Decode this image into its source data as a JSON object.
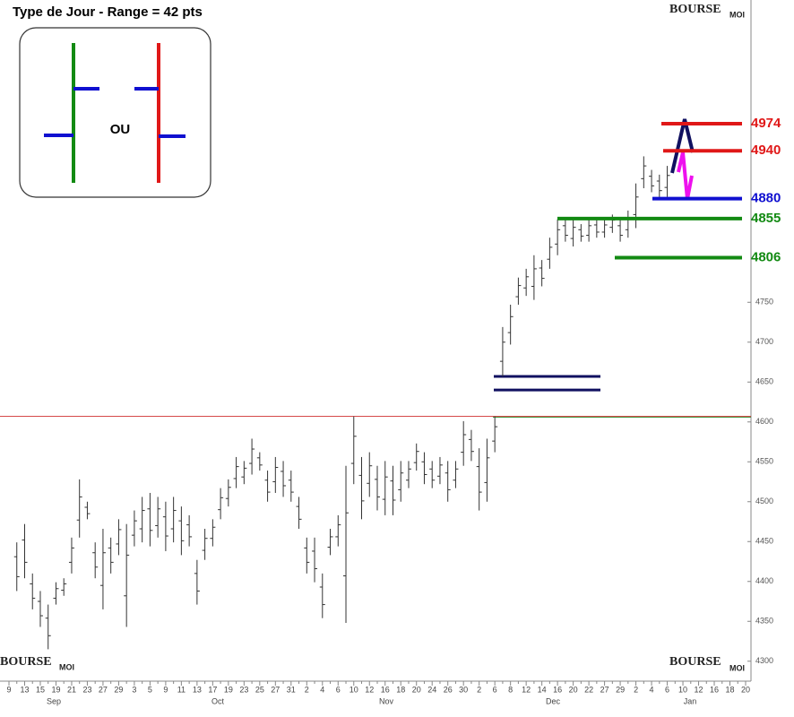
{
  "chart_data": {
    "type": "ohlc",
    "title": "Type de Jour - Range = 42 pts",
    "inset_text": "OU",
    "logo": "BOURSE",
    "logo_small": "MOI",
    "months": [
      "Sep",
      "Oct",
      "Nov",
      "Dec",
      "Jan"
    ],
    "categories": [
      "9",
      null,
      "13",
      null,
      "15",
      null,
      "19",
      null,
      "21",
      null,
      "23",
      null,
      "27",
      null,
      "29",
      null,
      "3",
      null,
      "5",
      null,
      "9",
      null,
      "11",
      null,
      "13",
      null,
      "17",
      null,
      "19",
      null,
      "23",
      null,
      "25",
      null,
      "27",
      null,
      "31",
      null,
      "2",
      null,
      "4",
      null,
      "6",
      null,
      "10",
      null,
      "12",
      null,
      "16",
      null,
      "18",
      null,
      "20",
      null,
      "24",
      null,
      "26",
      null,
      "30",
      null,
      "2",
      null,
      "6",
      null,
      "8",
      null,
      "12",
      null,
      "14",
      null,
      "16",
      null,
      "20",
      null,
      "22",
      null,
      "27",
      null,
      "29",
      null,
      "2",
      null,
      "4",
      null,
      "6",
      null,
      "10",
      null,
      "12",
      null,
      "16",
      null,
      "18",
      null,
      "20"
    ],
    "open": [
      null,
      4431,
      4452,
      4397,
      4375,
      4354,
      4379,
      4389,
      4424,
      4477,
      4493,
      4436,
      4395,
      4442,
      4447,
      4382,
      4458,
      4466,
      4491,
      4470,
      4481,
      4466,
      4476,
      4471,
      4410,
      4439,
      4454,
      4490,
      4504,
      4529,
      4531,
      4548,
      4555,
      4527,
      4525,
      4538,
      4527,
      4494,
      4442,
      4438,
      4393,
      4443,
      4456,
      4407,
      4548,
      4533,
      4523,
      4528,
      4503,
      4526,
      4515,
      4527,
      4549,
      4550,
      4541,
      4532,
      4536,
      4527,
      4562,
      4578,
      4544,
      4524,
      4576,
      4676,
      4712,
      4757,
      4768,
      4770,
      4793,
      4804,
      4823,
      4846,
      4830,
      4841,
      4834,
      4847,
      4838,
      4844,
      4846,
      4841,
      4860,
      4905,
      4908,
      4902,
      4894,
      null,
      null,
      null,
      null,
      null,
      null,
      null,
      null,
      null,
      null
    ],
    "high": [
      null,
      4449,
      4472,
      4410,
      4388,
      4371,
      4399,
      4404,
      4455,
      4528,
      4500,
      4449,
      4466,
      4455,
      4478,
      4472,
      4489,
      4506,
      4511,
      4506,
      4500,
      4506,
      4494,
      4483,
      4427,
      4466,
      4478,
      4517,
      4528,
      4556,
      4551,
      4579,
      4562,
      4539,
      4556,
      4551,
      4539,
      4506,
      4455,
      4455,
      4410,
      4466,
      4483,
      4545,
      4607,
      4556,
      4562,
      4545,
      4551,
      4545,
      4551,
      4551,
      4573,
      4562,
      4551,
      4556,
      4551,
      4551,
      4601,
      4590,
      4567,
      4579,
      4607,
      4719,
      4747,
      4781,
      4792,
      4809,
      4803,
      4831,
      4854,
      4854,
      4854,
      4848,
      4854,
      4854,
      4854,
      4860,
      4854,
      4865,
      4899,
      4933,
      4916,
      4910,
      4921,
      null,
      null,
      null,
      null,
      null,
      null,
      null,
      null,
      null,
      null
    ],
    "low": [
      null,
      4388,
      4404,
      4365,
      4343,
      4315,
      4371,
      4382,
      4410,
      4455,
      4478,
      4404,
      4365,
      4410,
      4433,
      4343,
      4444,
      4449,
      4444,
      4455,
      4438,
      4449,
      4433,
      4444,
      4371,
      4427,
      4444,
      4478,
      4494,
      4517,
      4522,
      4534,
      4539,
      4500,
      4511,
      4506,
      4500,
      4466,
      4410,
      4399,
      4354,
      4433,
      4444,
      4348,
      4522,
      4478,
      4506,
      4489,
      4483,
      4483,
      4500,
      4517,
      4539,
      4522,
      4517,
      4522,
      4500,
      4517,
      4545,
      4551,
      4489,
      4500,
      4562,
      4657,
      4697,
      4747,
      4758,
      4753,
      4770,
      4792,
      4809,
      4826,
      4820,
      4826,
      4826,
      4831,
      4831,
      4837,
      4826,
      4831,
      4843,
      4893,
      4888,
      4882,
      4882,
      null,
      null,
      null,
      null,
      null,
      null,
      null,
      null,
      null,
      null
    ],
    "close": [
      null,
      4406,
      4424,
      4379,
      4357,
      4332,
      4391,
      4397,
      4442,
      4506,
      4485,
      4418,
      4436,
      4424,
      4465,
      4433,
      4476,
      4489,
      4464,
      4491,
      4457,
      4489,
      4451,
      4456,
      4388,
      4454,
      4468,
      4505,
      4518,
      4544,
      4542,
      4566,
      4546,
      4512,
      4543,
      4520,
      4512,
      4478,
      4424,
      4416,
      4371,
      4456,
      4471,
      4486,
      4582,
      4501,
      4545,
      4506,
      4531,
      4502,
      4536,
      4541,
      4563,
      4534,
      4527,
      4546,
      4515,
      4541,
      4584,
      4563,
      4512,
      4555,
      4594,
      4700,
      4732,
      4771,
      4782,
      4792,
      4780,
      4819,
      4841,
      4834,
      4844,
      4833,
      4846,
      4838,
      4847,
      4853,
      4834,
      4855,
      4882,
      4921,
      4896,
      4890,
      4909,
      null,
      null,
      null,
      null,
      null,
      null,
      null,
      null,
      null,
      null
    ],
    "color": "#333333",
    "ylim": [
      4275,
      5129
    ],
    "yticks": [
      4300,
      4350,
      4400,
      4450,
      4500,
      4550,
      4600,
      4650,
      4700,
      4750
    ],
    "levels": [
      {
        "value": 4974,
        "color": "#e01818"
      },
      {
        "value": 4940,
        "color": "#e01818"
      },
      {
        "value": 4880,
        "color": "#1010d0"
      },
      {
        "value": 4855,
        "color": "#138a13"
      },
      {
        "value": 4806,
        "color": "#138a13"
      }
    ],
    "reference_lines": [
      {
        "value": 4607,
        "color": "#d03030"
      },
      {
        "value": 4606,
        "color": "#2a8a2a"
      },
      {
        "value": 4657,
        "color": "#101060"
      },
      {
        "value": 4640,
        "color": "#101060"
      }
    ]
  }
}
